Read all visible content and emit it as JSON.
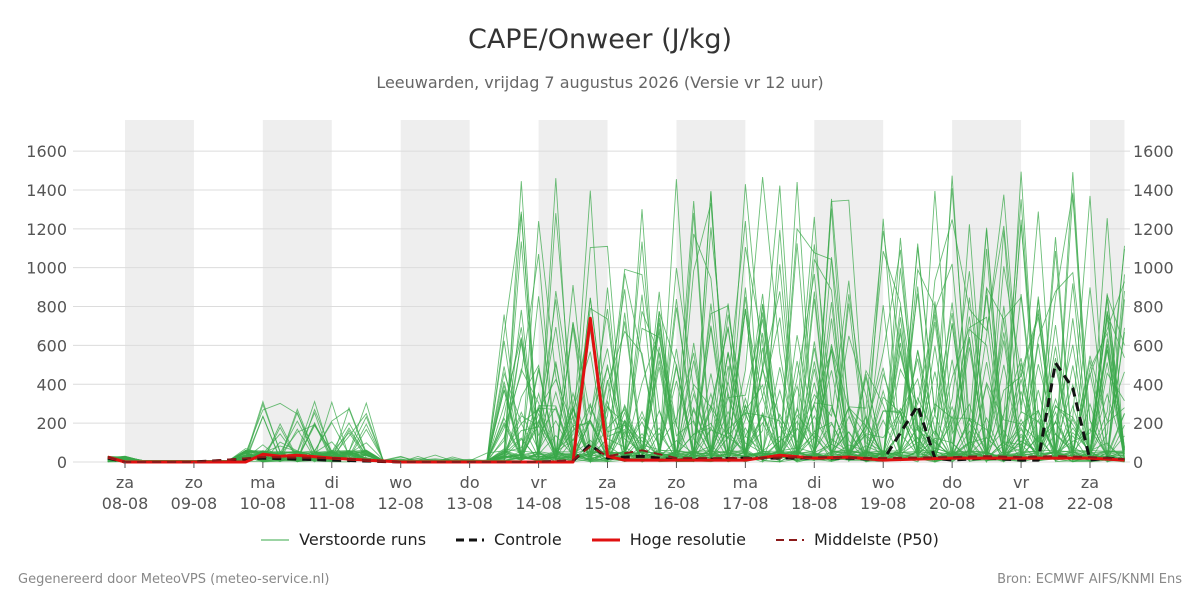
{
  "chart_data": {
    "type": "line",
    "title": "CAPE/Onweer (J/kg)",
    "subtitle": "Leeuwarden, vrijdag  7 augustus 2026 (Versie vr 12 uur)",
    "x_ticks": [
      {
        "day": "za",
        "date": "08-08"
      },
      {
        "day": "zo",
        "date": "09-08"
      },
      {
        "day": "ma",
        "date": "10-08"
      },
      {
        "day": "di",
        "date": "11-08"
      },
      {
        "day": "wo",
        "date": "12-08"
      },
      {
        "day": "do",
        "date": "13-08"
      },
      {
        "day": "vr",
        "date": "14-08"
      },
      {
        "day": "za",
        "date": "15-08"
      },
      {
        "day": "zo",
        "date": "16-08"
      },
      {
        "day": "ma",
        "date": "17-08"
      },
      {
        "day": "di",
        "date": "18-08"
      },
      {
        "day": "wo",
        "date": "19-08"
      },
      {
        "day": "do",
        "date": "20-08"
      },
      {
        "day": "vr",
        "date": "21-08"
      },
      {
        "day": "za",
        "date": "22-08"
      }
    ],
    "y_ticks": [
      0,
      200,
      400,
      600,
      800,
      1000,
      1200,
      1400,
      1600
    ],
    "ylim": [
      0,
      1760
    ],
    "xlim": [
      -0.25,
      14.5
    ],
    "weekend_bands": [
      [
        0,
        1
      ],
      [
        2,
        3
      ],
      [
        4,
        5
      ],
      [
        6,
        7
      ],
      [
        8,
        9
      ],
      [
        10,
        11
      ],
      [
        12,
        13
      ],
      [
        14,
        14.5
      ]
    ],
    "series": [
      {
        "name": "Controle",
        "color": "#111111",
        "style": "dashed",
        "x": [
          -0.25,
          0,
          1,
          2,
          2.5,
          3,
          4,
          5,
          6,
          6.5,
          6.75,
          7,
          7.5,
          8,
          9,
          10,
          10.5,
          11,
          11.25,
          11.5,
          11.75,
          12,
          12.5,
          13,
          13.25,
          13.5,
          13.75,
          14,
          14.25,
          14.5
        ],
        "y": [
          20,
          0,
          0,
          20,
          15,
          10,
          0,
          0,
          0,
          5,
          90,
          20,
          30,
          10,
          20,
          20,
          20,
          10,
          150,
          290,
          20,
          10,
          20,
          10,
          10,
          510,
          380,
          10,
          20,
          10
        ]
      },
      {
        "name": "Hoge resolutie",
        "color": "#e01010",
        "style": "solid",
        "x": [
          -0.25,
          0,
          1,
          1.75,
          2,
          2.25,
          2.5,
          3,
          4,
          5,
          6,
          6.5,
          6.75,
          7,
          7.25,
          8,
          9,
          9.5,
          10,
          10.5,
          11,
          12,
          13,
          14,
          14.5
        ],
        "y": [
          25,
          0,
          0,
          0,
          40,
          30,
          35,
          20,
          0,
          0,
          0,
          0,
          740,
          30,
          10,
          10,
          10,
          35,
          20,
          25,
          10,
          20,
          20,
          20,
          10
        ]
      },
      {
        "name": "Middelste (P50)",
        "color": "#8b1a1a",
        "style": "dashed",
        "x": [
          -0.25,
          0,
          1,
          2,
          3,
          4,
          5,
          6,
          6.5,
          6.75,
          7,
          7.5,
          8,
          9,
          10,
          11,
          12,
          12.5,
          13,
          13.5,
          14,
          14.5
        ],
        "y": [
          25,
          0,
          0,
          25,
          20,
          0,
          0,
          0,
          10,
          80,
          30,
          60,
          20,
          20,
          25,
          20,
          25,
          30,
          25,
          30,
          25,
          15
        ]
      }
    ],
    "ensemble": {
      "name": "Verstoorde runs",
      "color": "#3aa84a",
      "member_count": 50
    }
  },
  "legend": {
    "ensemble": "Verstoorde runs",
    "control": "Controle",
    "highres": "Hoge resolutie",
    "median": "Middelste (P50)"
  },
  "footer": {
    "left": "Gegenereerd door MeteoVPS (meteo-service.nl)",
    "right": "Bron: ECMWF AIFS/KNMI Ens"
  }
}
